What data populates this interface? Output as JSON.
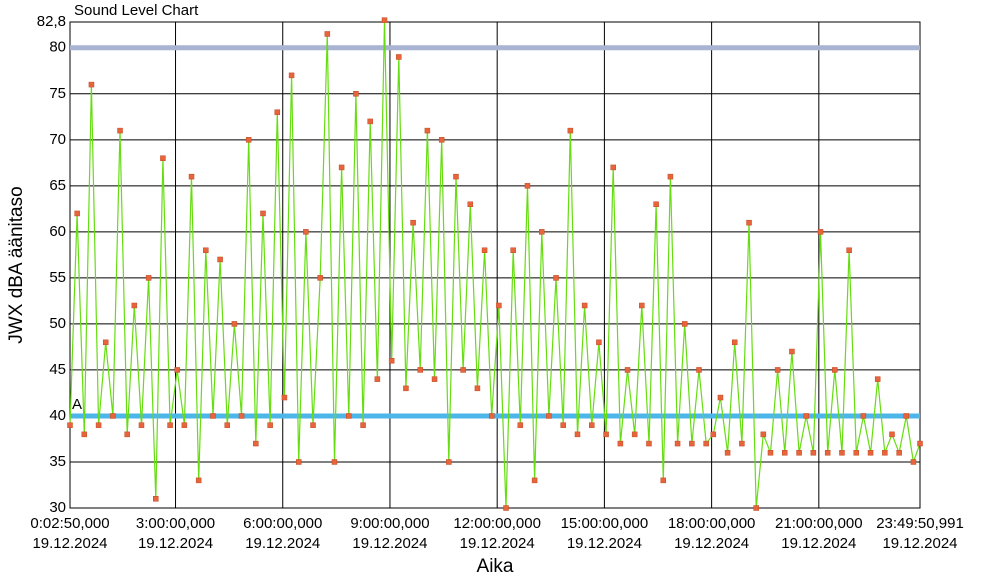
{
  "chart_data": {
    "type": "line",
    "title": "Sound Level Chart",
    "xlabel": "Aika",
    "ylabel": "JWX dBA äänitaso",
    "x": [
      170,
      890,
      1610,
      2330,
      3050,
      3770,
      4490,
      5210,
      5930,
      6650,
      7370,
      8090,
      8810,
      9530,
      10250,
      10970,
      11690,
      12410,
      13130,
      13850,
      14570,
      15290,
      16010,
      16730,
      17450,
      18170,
      18890,
      19610,
      20330,
      21050,
      21770,
      22490,
      23210,
      23930,
      24650,
      25370,
      26090,
      26810,
      27530,
      28250,
      28970,
      29690,
      30410,
      31130,
      31850,
      32570,
      33290,
      34010,
      34730,
      35450,
      36170,
      36890,
      37610,
      38330,
      39050,
      39770,
      40490,
      41210,
      41930,
      42650,
      43370,
      44090,
      44810,
      45530,
      46250,
      46970,
      47690,
      48410,
      49130,
      49850,
      50570,
      51290,
      52010,
      52730,
      53450,
      54170,
      54890,
      55610,
      56330,
      57050,
      57770,
      58490,
      59210,
      59930,
      60650,
      61370,
      62090,
      62810,
      63530,
      64250,
      64970,
      65690,
      66410,
      67130,
      67850,
      68570,
      69290,
      70010,
      70730,
      71450,
      72170,
      72890,
      73610,
      74330,
      75050,
      75770,
      76490,
      77210,
      77930,
      78650,
      79370,
      80090,
      80810,
      81530,
      82250,
      82970,
      83690,
      84410,
      85130,
      85790.991
    ],
    "series": [
      {
        "color": "#66dd11",
        "marker_color": "#e8643c",
        "values": [
          39,
          62,
          38,
          76,
          39,
          48,
          40,
          71,
          38,
          52,
          39,
          55,
          31,
          68,
          39,
          45,
          39,
          66,
          33,
          58,
          40,
          57,
          39,
          50,
          40,
          70,
          37,
          62,
          39,
          73,
          42,
          77,
          35,
          60,
          39,
          55,
          81.5,
          35,
          67,
          40,
          75,
          39,
          72,
          44,
          83,
          46,
          79,
          43,
          61,
          45,
          71,
          44,
          70,
          35,
          66,
          45,
          63,
          43,
          58,
          40,
          52,
          30,
          58,
          39,
          65,
          33,
          60,
          40,
          55,
          39,
          71,
          38,
          52,
          39,
          48,
          38,
          67,
          37,
          45,
          38,
          52,
          37,
          63,
          33,
          66,
          37,
          50,
          37,
          45,
          37,
          38,
          42,
          36,
          48,
          37,
          61,
          30,
          38,
          36,
          45,
          36,
          47,
          36,
          40,
          36,
          60,
          36,
          45,
          36,
          58,
          36,
          40,
          36,
          44,
          36,
          38,
          36,
          40,
          35,
          37
        ]
      }
    ],
    "reference_lines": [
      {
        "value": 80,
        "color": "#a9b4d2"
      },
      {
        "value": 40,
        "color": "#4db6e8",
        "label": "A"
      }
    ],
    "xlim": [
      170,
      85790.991
    ],
    "xticks": [
      {
        "value": 170,
        "label": "0:02:50,000\n19.12.2024"
      },
      {
        "value": 10800,
        "label": "3:00:00,000\n19.12.2024"
      },
      {
        "value": 21600,
        "label": "6:00:00,000\n19.12.2024"
      },
      {
        "value": 32400,
        "label": "9:00:00,000\n19.12.2024"
      },
      {
        "value": 43200,
        "label": "12:00:00,000\n19.12.2024"
      },
      {
        "value": 54000,
        "label": "15:00:00,000\n19.12.2024"
      },
      {
        "value": 64800,
        "label": "18:00:00,000\n19.12.2024"
      },
      {
        "value": 75600,
        "label": "21:00:00,000\n19.12.2024"
      },
      {
        "value": 85790.991,
        "label": "23:49:50,991\n19.12.2024"
      }
    ],
    "ylim": [
      30,
      82.8
    ],
    "yticks": [
      30,
      35,
      40,
      45,
      50,
      55,
      60,
      65,
      70,
      75,
      80,
      {
        "value": 82.8,
        "label": "82,8"
      }
    ],
    "grid": true
  }
}
